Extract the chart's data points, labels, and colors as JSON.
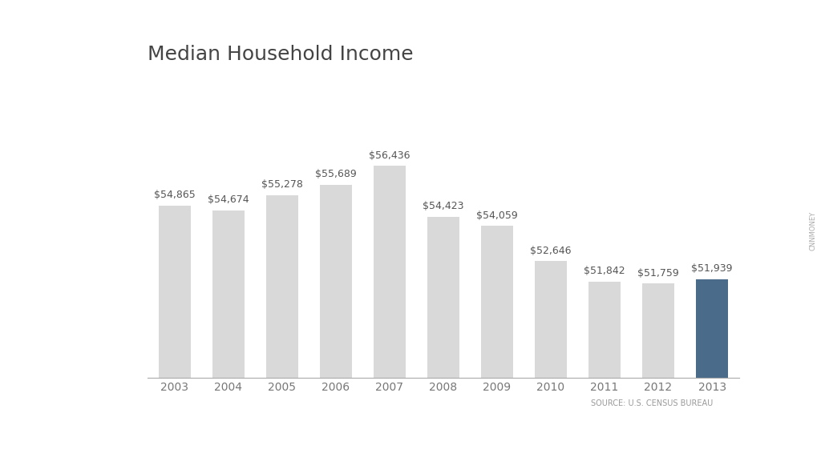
{
  "title": "Median Household Income",
  "categories": [
    "2003",
    "2004",
    "2005",
    "2006",
    "2007",
    "2008",
    "2009",
    "2010",
    "2011",
    "2012",
    "2013"
  ],
  "values": [
    54865,
    54674,
    55278,
    55689,
    56436,
    54423,
    54059,
    52646,
    51842,
    51759,
    51939
  ],
  "labels": [
    "$54,865",
    "$54,674",
    "$55,278",
    "$55,689",
    "$56,436",
    "$54,423",
    "$54,059",
    "$52,646",
    "$51,842",
    "$51,759",
    "$51,939"
  ],
  "bar_colors": [
    "#d9d9d9",
    "#d9d9d9",
    "#d9d9d9",
    "#d9d9d9",
    "#d9d9d9",
    "#d9d9d9",
    "#d9d9d9",
    "#d9d9d9",
    "#d9d9d9",
    "#d9d9d9",
    "#4a6b8a"
  ],
  "background_color": "#ffffff",
  "title_fontsize": 18,
  "label_fontsize": 9,
  "tick_fontsize": 10,
  "source_text": "SOURCE: U.S. CENSUS BUREAU",
  "source_fontsize": 7,
  "cnnmoney_text": "CNNMONEY",
  "ylim_min": 48000,
  "ylim_max": 59000
}
